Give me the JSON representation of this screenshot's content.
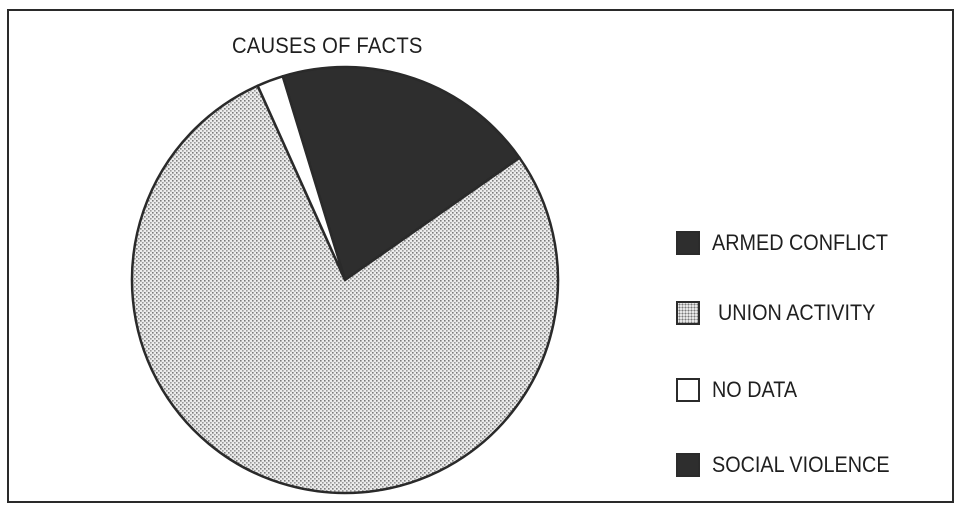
{
  "chart_data": {
    "type": "pie",
    "title": "CAUSES OF FACTS",
    "start_angle_deg": -17,
    "direction": "clockwise",
    "slices": [
      {
        "label": "ARMED CONFLICT",
        "value": 20,
        "color": "#2e2e2e",
        "fill": "solid"
      },
      {
        "label": "SOCIAL VIOLENCE",
        "value": 0,
        "color": "#2e2e2e",
        "fill": "solid"
      },
      {
        "label": "UNION ACTIVITY",
        "value": 78,
        "color": "#d2d2d2",
        "fill": "dotted"
      },
      {
        "label": "NO DATA",
        "value": 2,
        "color": "#ffffff",
        "fill": "solid"
      }
    ],
    "legend": {
      "placement": "right",
      "entries": [
        {
          "label": "ARMED CONFLICT",
          "color": "#2e2e2e",
          "fill": "solid"
        },
        {
          "label": "UNION ACTIVITY",
          "color": "#d2d2d2",
          "fill": "dotted"
        },
        {
          "label": "NO DATA",
          "color": "#ffffff",
          "fill": "solid"
        },
        {
          "label": "SOCIAL VIOLENCE",
          "color": "#2e2e2e",
          "fill": "solid"
        }
      ]
    }
  }
}
